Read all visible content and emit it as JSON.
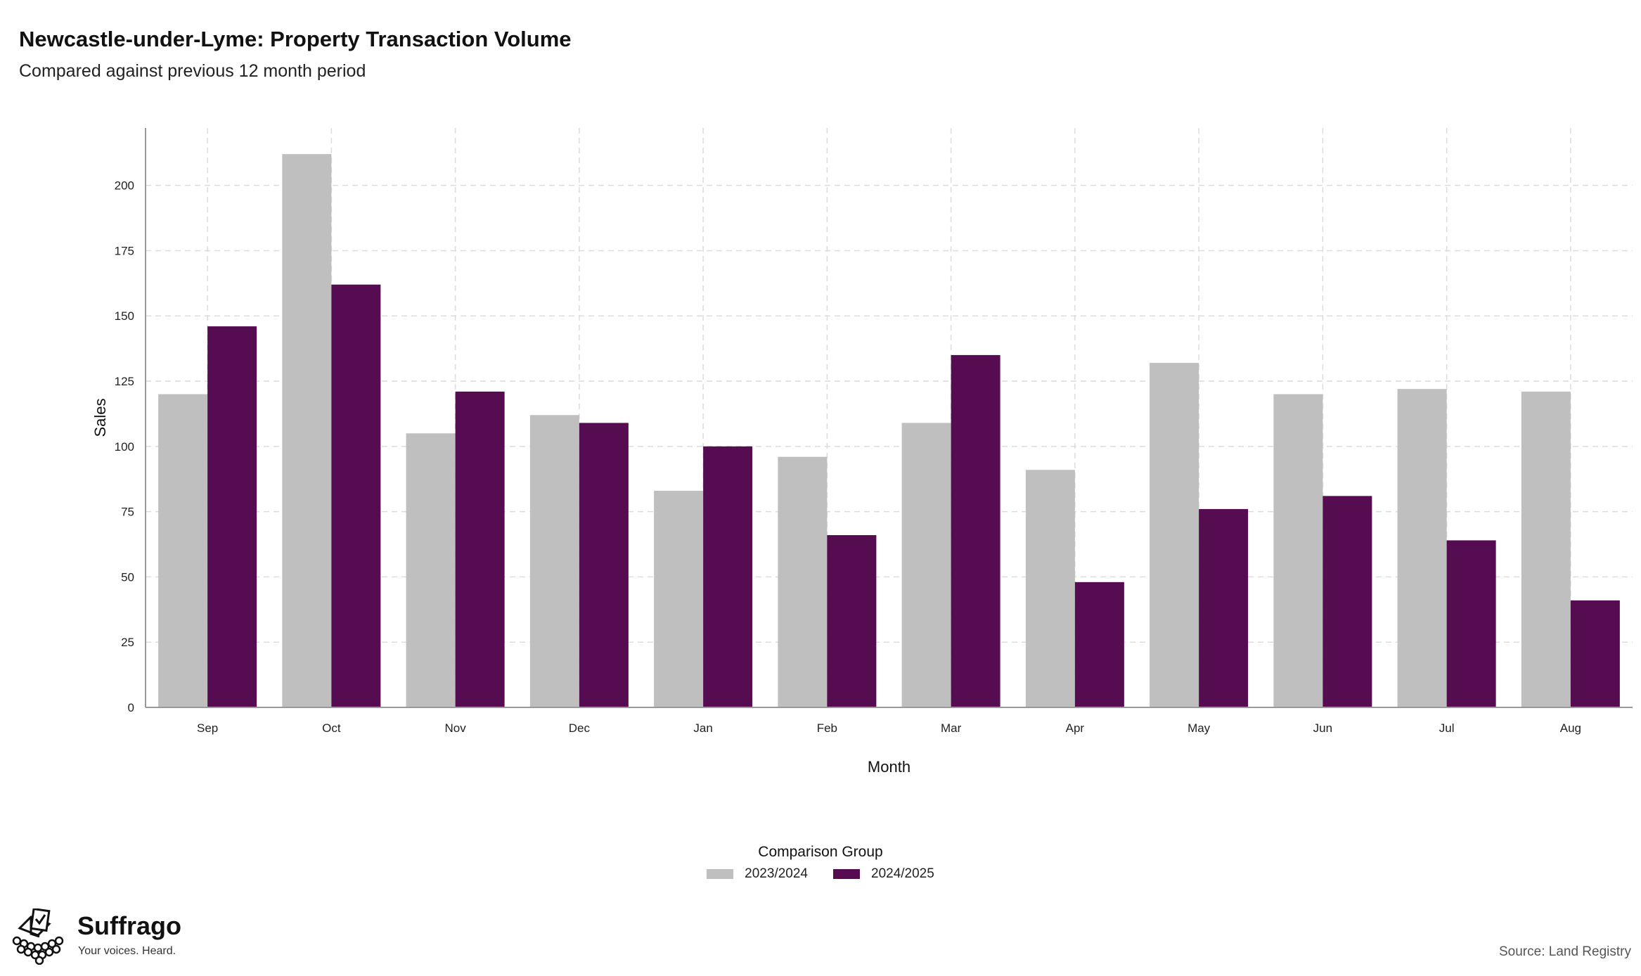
{
  "header": {
    "title": "Newcastle-under-Lyme: Property Transaction Volume",
    "subtitle": "Compared against previous 12 month period"
  },
  "footer": {
    "brand": "Suffrago",
    "tagline": "Your voices. Heard.",
    "source": "Source: Land Registry"
  },
  "colors": {
    "series_2023": "#bfbfbf",
    "series_2024": "#560c51",
    "grid": "#dcdcdc",
    "axis": "#999999"
  },
  "chart_data": {
    "type": "bar",
    "xlabel": "Month",
    "ylabel": "Sales",
    "ylim": [
      0,
      222
    ],
    "yticks": [
      0,
      25,
      50,
      75,
      100,
      125,
      150,
      175,
      200
    ],
    "grid": true,
    "legend_title": "Comparison Group",
    "legend_position": "bottom",
    "categories": [
      "Sep",
      "Oct",
      "Nov",
      "Dec",
      "Jan",
      "Feb",
      "Mar",
      "Apr",
      "May",
      "Jun",
      "Jul",
      "Aug"
    ],
    "series": [
      {
        "name": "2023/2024",
        "values": [
          120,
          212,
          105,
          112,
          83,
          96,
          109,
          91,
          132,
          120,
          122,
          121
        ]
      },
      {
        "name": "2024/2025",
        "values": [
          146,
          162,
          121,
          109,
          100,
          66,
          135,
          48,
          76,
          81,
          64,
          41
        ]
      }
    ]
  }
}
